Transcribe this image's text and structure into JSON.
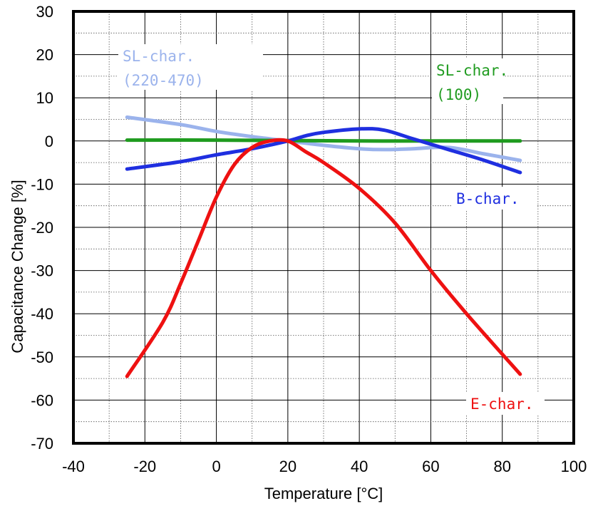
{
  "chart_data": {
    "type": "line",
    "title": "",
    "xlabel": "Temperature [°C]",
    "ylabel": "Capacitance Change [%]",
    "xlim": [
      -40,
      100
    ],
    "ylim": [
      -70,
      30
    ],
    "xticks": [
      -40,
      -20,
      0,
      20,
      40,
      60,
      80,
      100
    ],
    "yticks": [
      30,
      20,
      10,
      0,
      -10,
      -20,
      -30,
      -40,
      -50,
      -60,
      -70
    ],
    "grid": true,
    "series": [
      {
        "name": "SL-char. (220-470)",
        "label_lines": [
          "SL-char.",
          "(220-470)"
        ],
        "color": "#9bb3ec",
        "x": [
          -25,
          -10,
          0,
          10,
          20,
          30,
          40,
          47,
          55,
          65,
          75,
          85
        ],
        "y": [
          5.5,
          3.8,
          2.2,
          1.0,
          0,
          -1.0,
          -1.8,
          -2.0,
          -1.8,
          -1.5,
          -3.0,
          -4.5
        ]
      },
      {
        "name": "SL-char. (100)",
        "label_lines": [
          "SL-char.",
          "(100)"
        ],
        "color": "#1f9b1f",
        "x": [
          -25,
          0,
          20,
          40,
          60,
          85
        ],
        "y": [
          0.2,
          0.2,
          0.1,
          0.0,
          0.0,
          0.0
        ]
      },
      {
        "name": "B-char.",
        "label_lines": [
          "B-char."
        ],
        "color": "#1f2fe0",
        "x": [
          -25,
          -10,
          0,
          10,
          20,
          25,
          30,
          40,
          47,
          55,
          65,
          75,
          85
        ],
        "y": [
          -6.5,
          -4.8,
          -3.2,
          -1.8,
          0,
          1.2,
          2.0,
          2.8,
          2.5,
          0.5,
          -2.0,
          -4.5,
          -7.3
        ]
      },
      {
        "name": "E-char.",
        "label_lines": [
          "E-char."
        ],
        "color": "#ee1111",
        "x": [
          -25,
          -15,
          -10,
          -5,
          0,
          5,
          10,
          15,
          20,
          25,
          30,
          40,
          50,
          60,
          70,
          85
        ],
        "y": [
          -54.5,
          -42,
          -33,
          -23,
          -13,
          -5.5,
          -1.5,
          0,
          0,
          -2.5,
          -5,
          -11,
          -19,
          -30,
          -40,
          -54
        ]
      }
    ]
  }
}
